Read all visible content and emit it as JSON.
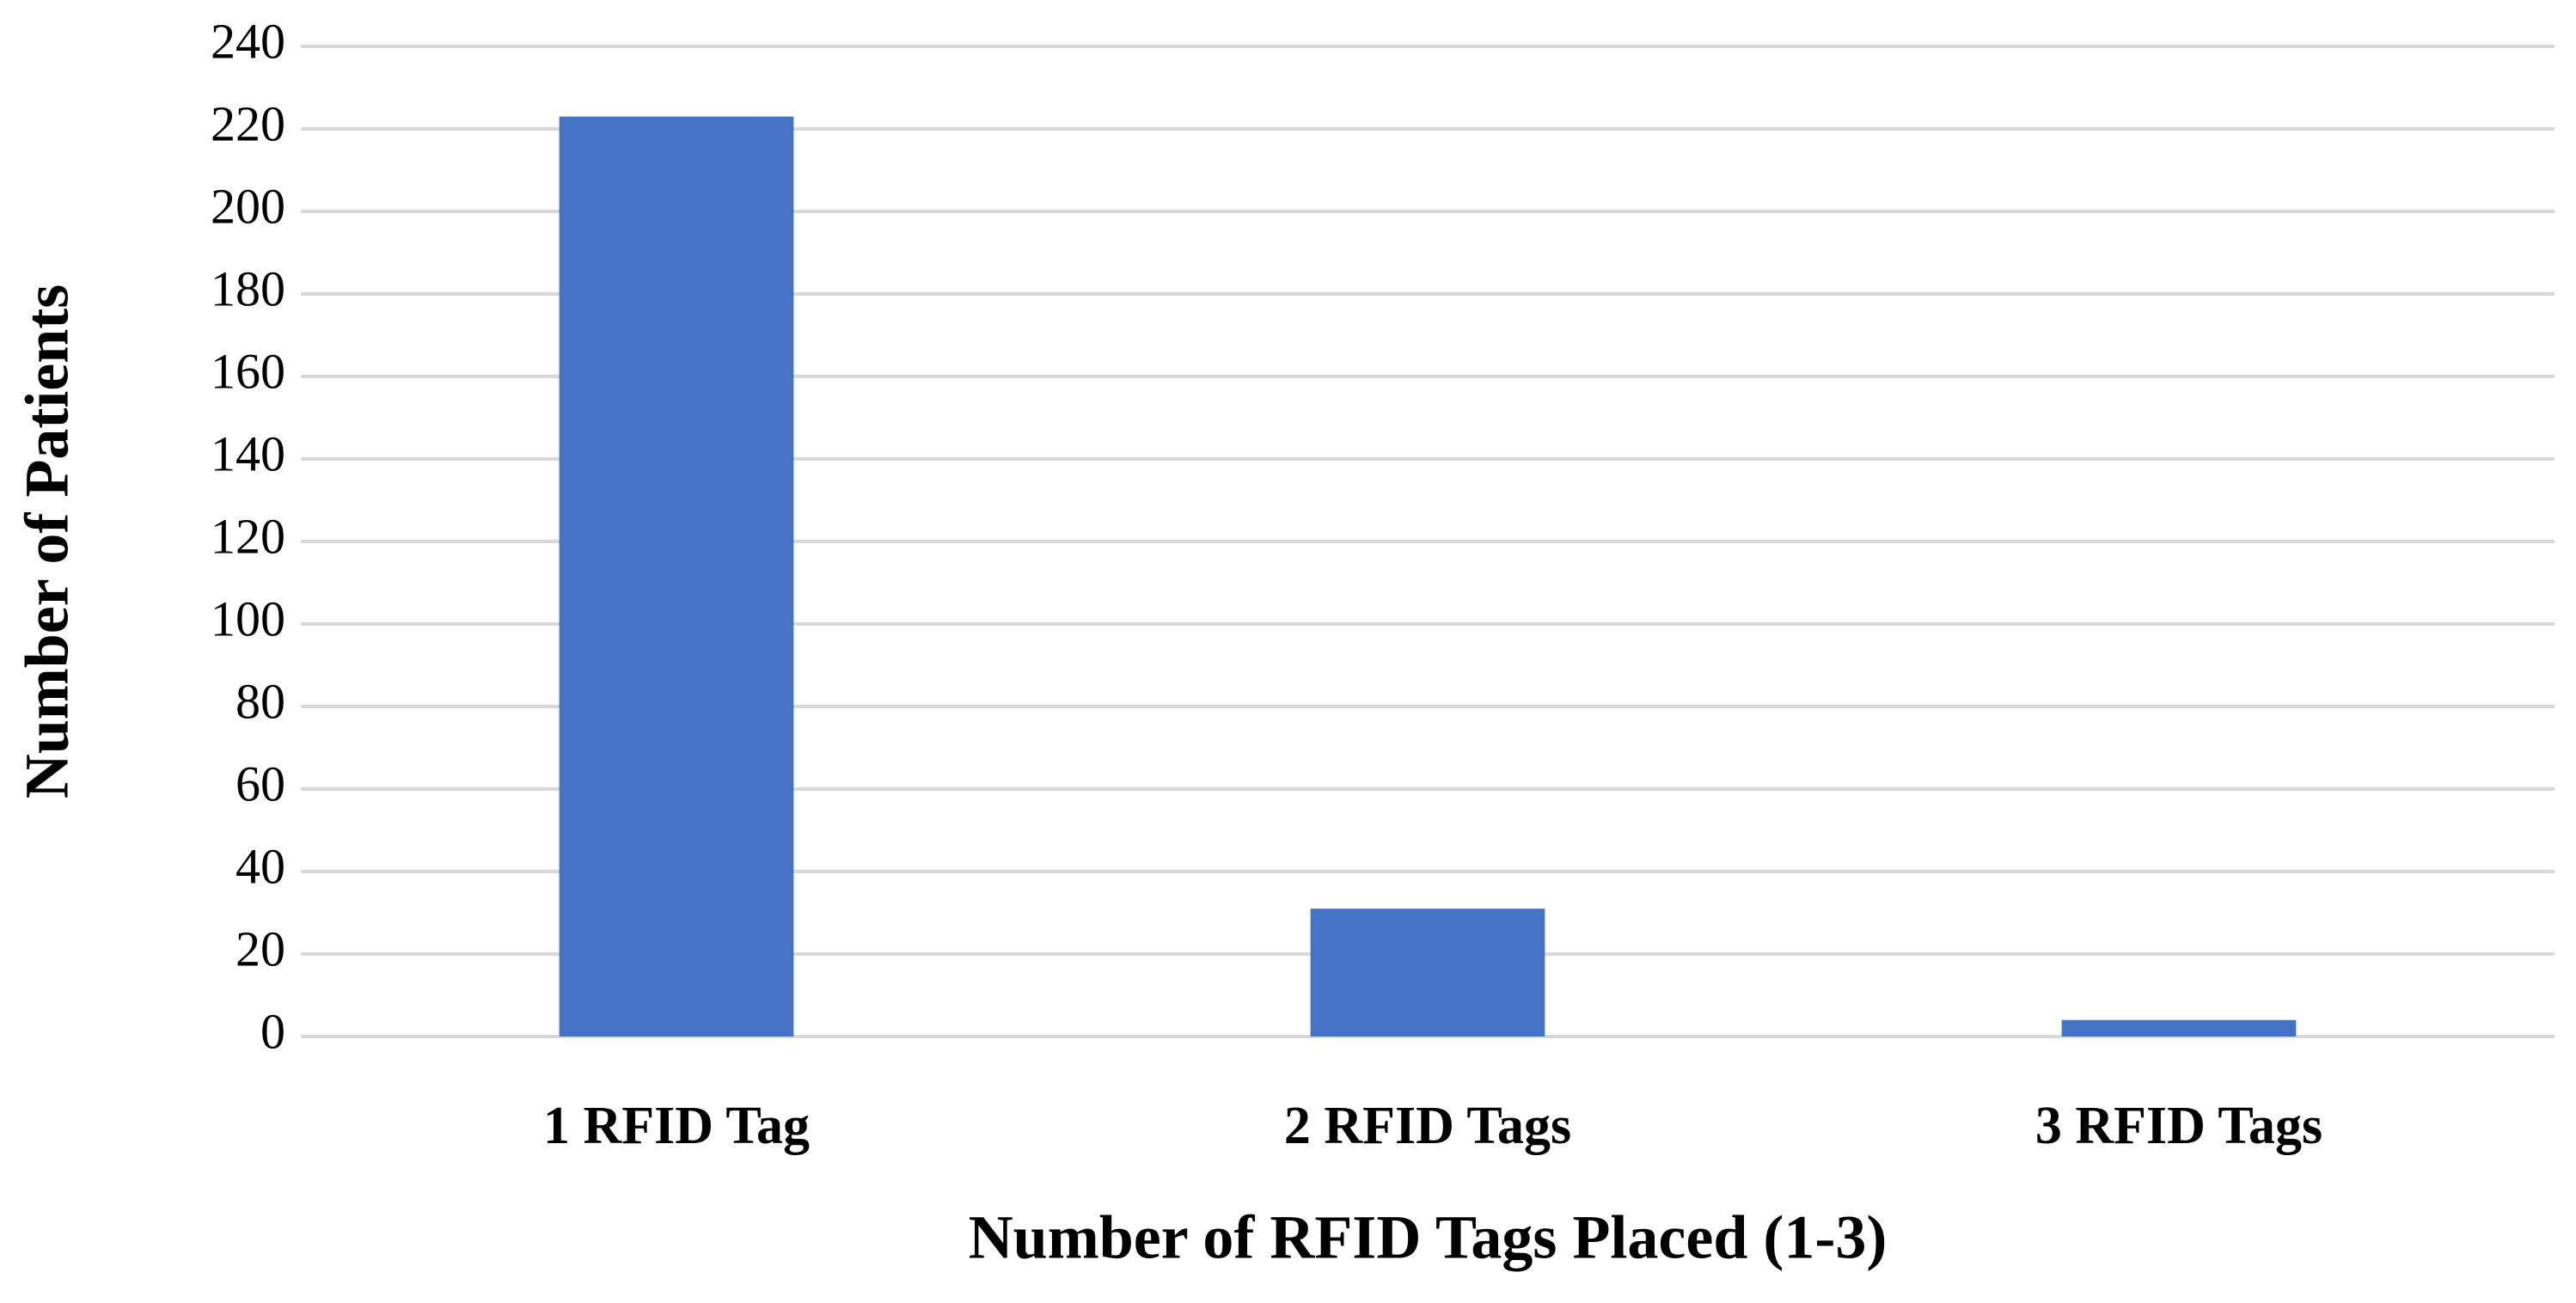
{
  "chart_data": {
    "type": "bar",
    "xlabel": "Number of RFID Tags Placed (1-3)",
    "ylabel": "Number of Patients",
    "categories": [
      "1 RFID Tag",
      "2 RFID Tags",
      "3 RFID Tags"
    ],
    "values": [
      223,
      31,
      4
    ],
    "color": "#4472c4",
    "ylim": [
      0,
      240
    ],
    "yticks": [
      0,
      20,
      40,
      60,
      80,
      100,
      120,
      140,
      160,
      180,
      200,
      220,
      240
    ],
    "grid": true
  }
}
